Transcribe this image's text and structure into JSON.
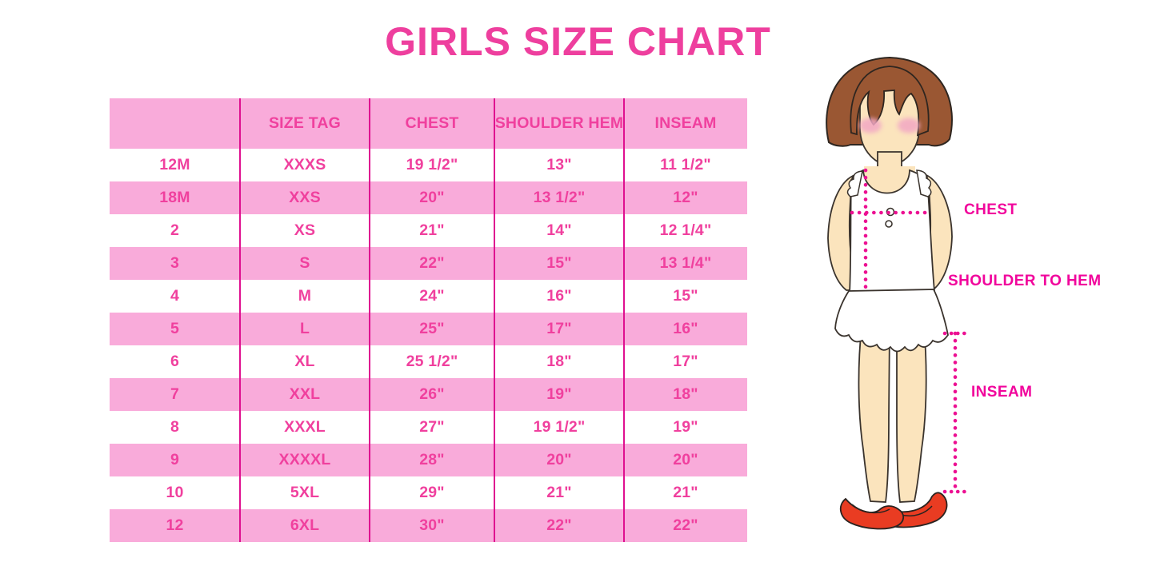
{
  "title": "GIRLS SIZE CHART",
  "chart_data": {
    "type": "table",
    "title": "GIRLS SIZE CHART",
    "columns": [
      "",
      "SIZE TAG",
      "CHEST",
      "SHOULDER HEM",
      "INSEAM"
    ],
    "rows": [
      [
        "12M",
        "XXXS",
        "19 1/2\"",
        "13\"",
        "11 1/2\""
      ],
      [
        "18M",
        "XXS",
        "20\"",
        "13 1/2\"",
        "12\""
      ],
      [
        "2",
        "XS",
        "21\"",
        "14\"",
        "12 1/4\""
      ],
      [
        "3",
        "S",
        "22\"",
        "15\"",
        "13 1/4\""
      ],
      [
        "4",
        "M",
        "24\"",
        "16\"",
        "15\""
      ],
      [
        "5",
        "L",
        "25\"",
        "17\"",
        "16\""
      ],
      [
        "6",
        "XL",
        "25 1/2\"",
        "18\"",
        "17\""
      ],
      [
        "7",
        "XXL",
        "26\"",
        "19\"",
        "18\""
      ],
      [
        "8",
        "XXXL",
        "27\"",
        "19 1/2\"",
        "19\""
      ],
      [
        "9",
        "XXXXL",
        "28\"",
        "20\"",
        "20\""
      ],
      [
        "10",
        "5XL",
        "29\"",
        "21\"",
        "21\""
      ],
      [
        "12",
        "6XL",
        "30\"",
        "22\"",
        "22\""
      ]
    ],
    "layout": {
      "header_background": "#F9ABDA",
      "row_striping": "alternating white and pink, first data row white",
      "grid": "vertical magenta column dividers only, no outer border",
      "legend": "none"
    }
  },
  "figure": {
    "labels": {
      "chest": "CHEST",
      "shoulder_to_hem": "SHOULDER TO HEM",
      "inseam": "INSEAM"
    }
  },
  "colors": {
    "title_pink": "#EE3F9E",
    "table_row_pink": "#F9ABDA",
    "table_divider_magenta": "#DF1090",
    "table_text_pink": "#F0409E",
    "label_magenta": "#F1059C",
    "dotted_line_magenta": "#EC1092",
    "hair_brown": "#9A5733",
    "skin": "#FBE4BD",
    "blush": "#F2A8C4",
    "shoe_red": "#E93C22"
  }
}
